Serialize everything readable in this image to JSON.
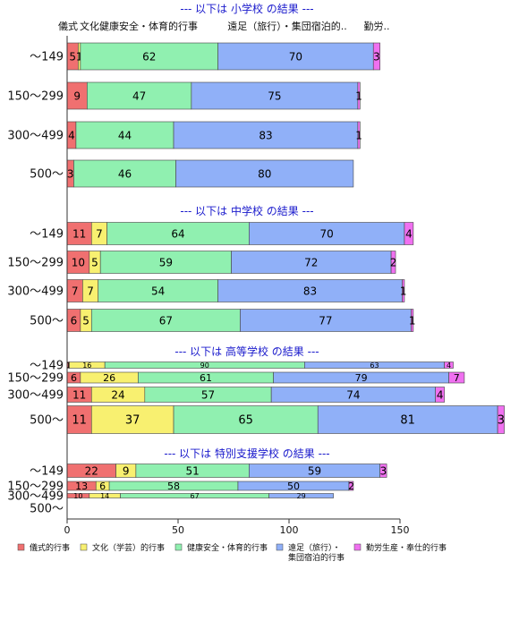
{
  "chart_data": {
    "type": "bar",
    "orientation": "horizontal",
    "stacked": true,
    "xlim": [
      0,
      150
    ],
    "xticks": [
      0,
      50,
      100,
      150
    ],
    "grid": false,
    "legend_position": "bottom",
    "colors": [
      "#f07070",
      "#f8f070",
      "#90f0b0",
      "#90b0f8",
      "#f070f0"
    ],
    "series_names": [
      "儀式的行事",
      "文化（学芸）的行事",
      "健康安全・体育的行事",
      "遠足（旅行）・\n集団宿泊的行事",
      "勤労生産・奉仕的行事"
    ],
    "top_labels": [
      "儀式",
      "文化..",
      "健康安全・体育的行事",
      "遠足（旅行）・集団宿泊的..",
      "勤労.."
    ],
    "panels": [
      {
        "title": "--- 以下は 小学校 の結果 ---",
        "categories": [
          "～149",
          "150～299",
          "300～499",
          "500～"
        ],
        "values": [
          [
            5,
            1,
            62,
            70,
            3
          ],
          [
            9,
            0,
            47,
            75,
            1
          ],
          [
            4,
            0,
            44,
            83,
            1
          ],
          [
            3,
            0,
            46,
            80,
            0
          ]
        ]
      },
      {
        "title": "--- 以下は 中学校 の結果 ---",
        "categories": [
          "～149",
          "150～299",
          "300～499",
          "500～"
        ],
        "values": [
          [
            11,
            7,
            64,
            70,
            4
          ],
          [
            10,
            5,
            59,
            72,
            2
          ],
          [
            7,
            7,
            54,
            83,
            1
          ],
          [
            6,
            5,
            67,
            77,
            1
          ]
        ]
      },
      {
        "title": "--- 以下は 高等学校 の結果 ---",
        "categories": [
          "～149",
          "150～299",
          "300～499",
          "500～"
        ],
        "values": [
          [
            1,
            16,
            90,
            63,
            4
          ],
          [
            6,
            26,
            61,
            79,
            7
          ],
          [
            11,
            24,
            57,
            74,
            4
          ],
          [
            11,
            37,
            65,
            81,
            3
          ]
        ]
      },
      {
        "title": "--- 以下は 特別支援学校 の結果 ---",
        "categories": [
          "～149",
          "150～299",
          "300～499",
          "500～"
        ],
        "values": [
          [
            22,
            9,
            51,
            59,
            3
          ],
          [
            13,
            6,
            58,
            50,
            2
          ],
          [
            10,
            14,
            67,
            29,
            0
          ],
          [
            0,
            0,
            0,
            0,
            0
          ]
        ]
      }
    ]
  }
}
